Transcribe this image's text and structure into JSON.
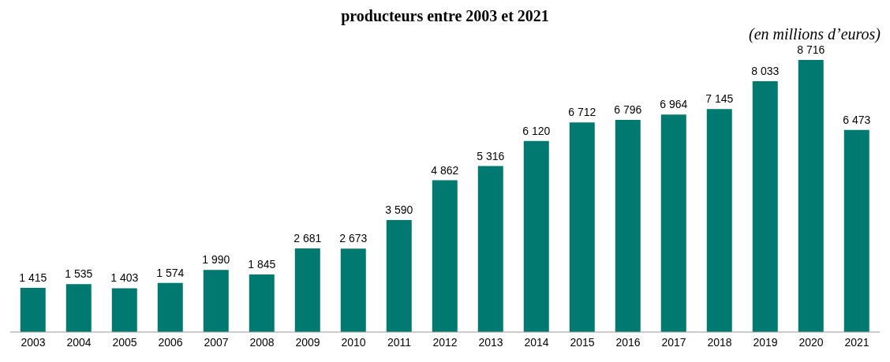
{
  "chart_data": {
    "type": "bar",
    "title": "producteurs entre 2003 et 2021",
    "subtitle": "(en millions d’euros)",
    "categories": [
      "2003",
      "2004",
      "2005",
      "2006",
      "2007",
      "2008",
      "2009",
      "2010",
      "2011",
      "2012",
      "2013",
      "2014",
      "2015",
      "2016",
      "2017",
      "2018",
      "2019",
      "2020",
      "2021"
    ],
    "values": [
      1415,
      1535,
      1403,
      1574,
      1990,
      1845,
      2681,
      2673,
      3590,
      4862,
      5316,
      6120,
      6712,
      6796,
      6964,
      7145,
      8033,
      8716,
      6473
    ],
    "value_labels": [
      "1 415",
      "1 535",
      "1 403",
      "1 574",
      "1 990",
      "1 845",
      "2 681",
      "2 673",
      "3 590",
      "4 862",
      "5 316",
      "6 120",
      "6 712",
      "6 796",
      "6 964",
      "7 145",
      "8 033",
      "8 716",
      "6 473"
    ],
    "color": "#007a70",
    "grid": false,
    "legend": false
  }
}
